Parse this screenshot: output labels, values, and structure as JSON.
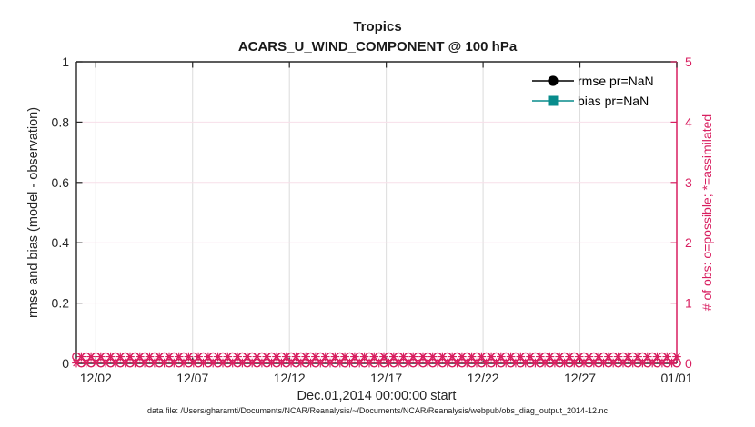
{
  "title": {
    "line1": "Tropics",
    "line2": "ACARS_U_WIND_COMPONENT @ 100 hPa"
  },
  "axes": {
    "left": {
      "label": "rmse and bias (model - observation)"
    },
    "right": {
      "label": "# of obs: o=possible; *=assimilated"
    },
    "x": {
      "label": "Dec.01,2014 00:00:00 start"
    }
  },
  "legend": {
    "items": [
      {
        "label": "rmse pr=NaN",
        "marker": "circle",
        "color": "#000000"
      },
      {
        "label": "bias pr=NaN",
        "marker": "square",
        "color": "#088c8c"
      }
    ]
  },
  "caption": "data file: /Users/gharamti/Documents/NCAR/Reanalysis/~/Documents/NCAR/Reanalysis/webpub/obs_diag_output_2014-12.nc",
  "colors": {
    "axis_dark": "#262626",
    "text_dark": "#1a1a1a",
    "pink": "#d81f60",
    "grid_pink": "#f7dfe9",
    "grid_gray": "#dcdcdc",
    "teal": "#088c8c"
  },
  "chart_data": {
    "type": "line",
    "title": "Tropics",
    "subtitle": "ACARS_U_WIND_COMPONENT @ 100 hPa",
    "x_axis": {
      "label": "Dec.01,2014 00:00:00 start",
      "tick_labels": [
        "12/02",
        "12/07",
        "12/12",
        "12/17",
        "12/22",
        "12/27",
        "01/01"
      ],
      "tick_days": [
        1,
        6,
        11,
        16,
        21,
        26,
        31
      ],
      "range_days": [
        0,
        31
      ]
    },
    "y_left": {
      "label": "rmse and bias (model - observation)",
      "tick_labels": [
        "0",
        "0.2",
        "0.4",
        "0.6",
        "0.8",
        "1"
      ],
      "tick_values": [
        0,
        0.2,
        0.4,
        0.6,
        0.8,
        1
      ],
      "range": [
        0,
        1
      ]
    },
    "y_right": {
      "label": "# of obs: o=possible; *=assimilated",
      "tick_labels": [
        "0",
        "1",
        "2",
        "3",
        "4",
        "5"
      ],
      "tick_values": [
        0,
        1,
        2,
        3,
        4,
        5
      ],
      "range": [
        0,
        5
      ]
    },
    "series": [
      {
        "name": "rmse pr=NaN",
        "axis": "left",
        "values": "NaN (nothing plotted)"
      },
      {
        "name": "bias pr=NaN",
        "axis": "left",
        "values": "NaN (nothing plotted)"
      },
      {
        "name": "# of obs possible (o markers)",
        "axis": "right",
        "constant_value": 0
      },
      {
        "name": "# of obs assimilated (* markers)",
        "axis": "right",
        "constant_value": 0
      }
    ],
    "obs_markers": {
      "glyphs": [
        "o",
        "*"
      ],
      "meaning": {
        "o": "possible",
        "*": "assimilated"
      },
      "value": 0,
      "count": 124
    },
    "grid": true,
    "legend_position": "top-right-inside"
  }
}
